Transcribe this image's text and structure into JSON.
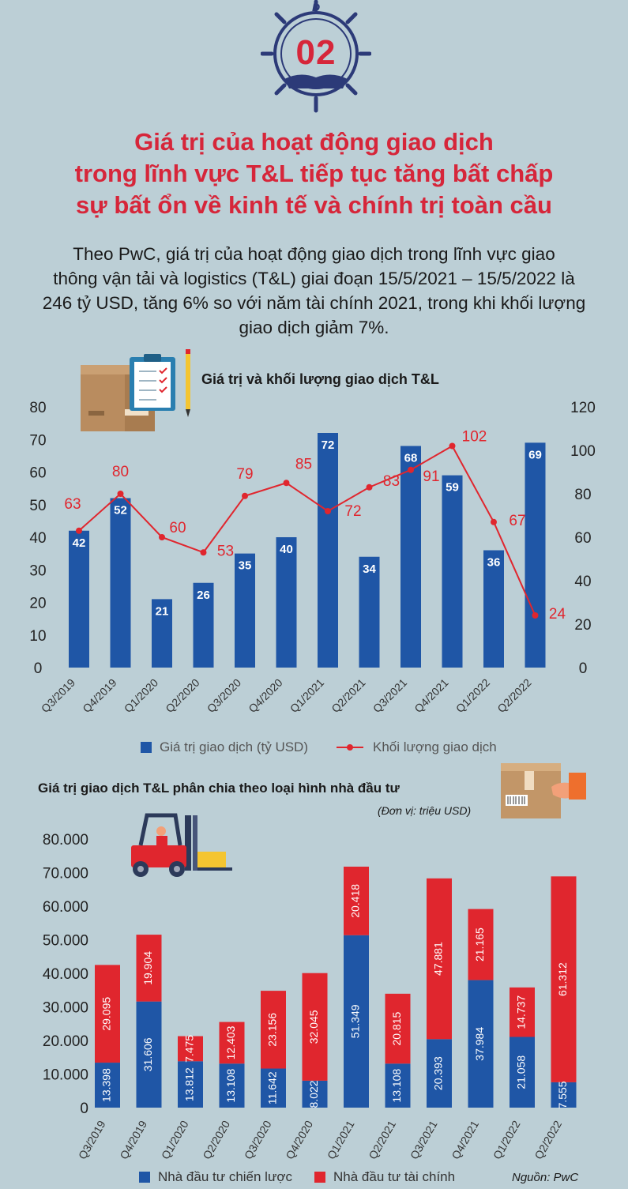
{
  "badge": {
    "number": "02"
  },
  "headline": {
    "line1": "Giá trị của hoạt động giao dịch",
    "line2": "trong lĩnh vực T&L tiếp tục tăng bất chấp",
    "line3": "sự bất ổn về kinh tế và chính trị toàn cầu"
  },
  "intro": {
    "line1": "Theo PwC, giá trị của hoạt động giao dịch trong lĩnh vực giao",
    "line2": "thông vận tải và logistics (T&L) giai đoạn 15/5/2021 – 15/5/2022 là",
    "line3": "246 tỷ USD, tăng 6% so với năm tài chính 2021, trong khi khối lượng",
    "line4": "giao dịch giảm 7%."
  },
  "source": "Nguồn: PwC",
  "colors": {
    "accent": "#d6263a",
    "blue": "#1f56a6",
    "red": "#e0262e",
    "background": "#bccfd6"
  },
  "icons": [
    "ship-wheel-icon",
    "boxes-clipboard-icon",
    "forklift-icon",
    "package-hand-icon"
  ],
  "chart_data": [
    {
      "type": "bar+line",
      "title": "Giá trị và khối lượng giao dịch T&L",
      "categories": [
        "Q3/2019",
        "Q4/2019",
        "Q1/2020",
        "Q2/2020",
        "Q3/2020",
        "Q4/2020",
        "Q1/2021",
        "Q2/2021",
        "Q3/2021",
        "Q4/2021",
        "Q1/2022",
        "Q2/2022"
      ],
      "series": [
        {
          "name": "Giá trị giao dịch (tỷ USD)",
          "type": "bar",
          "axis": "left",
          "color": "#1f56a6",
          "values": [
            42,
            52,
            21,
            26,
            35,
            40,
            72,
            34,
            68,
            59,
            36,
            69
          ]
        },
        {
          "name": "Khối lượng giao dịch",
          "type": "line",
          "axis": "right",
          "color": "#e0262e",
          "values": [
            63,
            80,
            60,
            53,
            79,
            85,
            72,
            83,
            91,
            102,
            67,
            24
          ]
        }
      ],
      "ylim_left": [
        0,
        80
      ],
      "yticks_left": [
        "0",
        "10",
        "20",
        "30",
        "40",
        "50",
        "60",
        "70",
        "80"
      ],
      "ylim_right": [
        0,
        120
      ],
      "yticks_right": [
        "0",
        "20",
        "40",
        "60",
        "80",
        "100",
        "120"
      ],
      "grid": false,
      "legend": "bottom"
    },
    {
      "type": "stacked-bar",
      "title": "Giá trị giao dịch T&L phân chia theo loại hình nhà đầu tư",
      "unit": "(Đơn vị: triệu USD)",
      "categories": [
        "Q3/2019",
        "Q4/2019",
        "Q1/2020",
        "Q2/2020",
        "Q3/2020",
        "Q4/2020",
        "Q1/2021",
        "Q2/2021",
        "Q3/2021",
        "Q4/2021",
        "Q1/2022",
        "Q2/2022"
      ],
      "series": [
        {
          "name": "Nhà đầu tư chiến lược",
          "color": "#1f56a6",
          "values": [
            13398,
            31606,
            13812,
            13108,
            11642,
            8022,
            51349,
            13108,
            20393,
            37984,
            21058,
            7555
          ],
          "labels": [
            "13.398",
            "31.606",
            "13.812",
            "13.108",
            "11.642",
            "8.022",
            "51.349",
            "13.108",
            "20.393",
            "37.984",
            "21.058",
            "7.555"
          ]
        },
        {
          "name": "Nhà đầu tư tài chính",
          "color": "#e0262e",
          "values": [
            29095,
            19904,
            7475,
            12403,
            23156,
            32045,
            20418,
            20815,
            47881,
            21165,
            14737,
            61312
          ],
          "labels": [
            "29.095",
            "19.904",
            "7.475",
            "12.403",
            "23.156",
            "32.045",
            "20.418",
            "20.815",
            "47.881",
            "21.165",
            "14.737",
            "61.312"
          ]
        }
      ],
      "ylim": [
        0,
        80000
      ],
      "yticks": [
        "0",
        "10.000",
        "20.000",
        "30.000",
        "40.000",
        "50.000",
        "60.000",
        "70.000",
        "80.000"
      ],
      "grid": false,
      "legend": "bottom"
    }
  ]
}
